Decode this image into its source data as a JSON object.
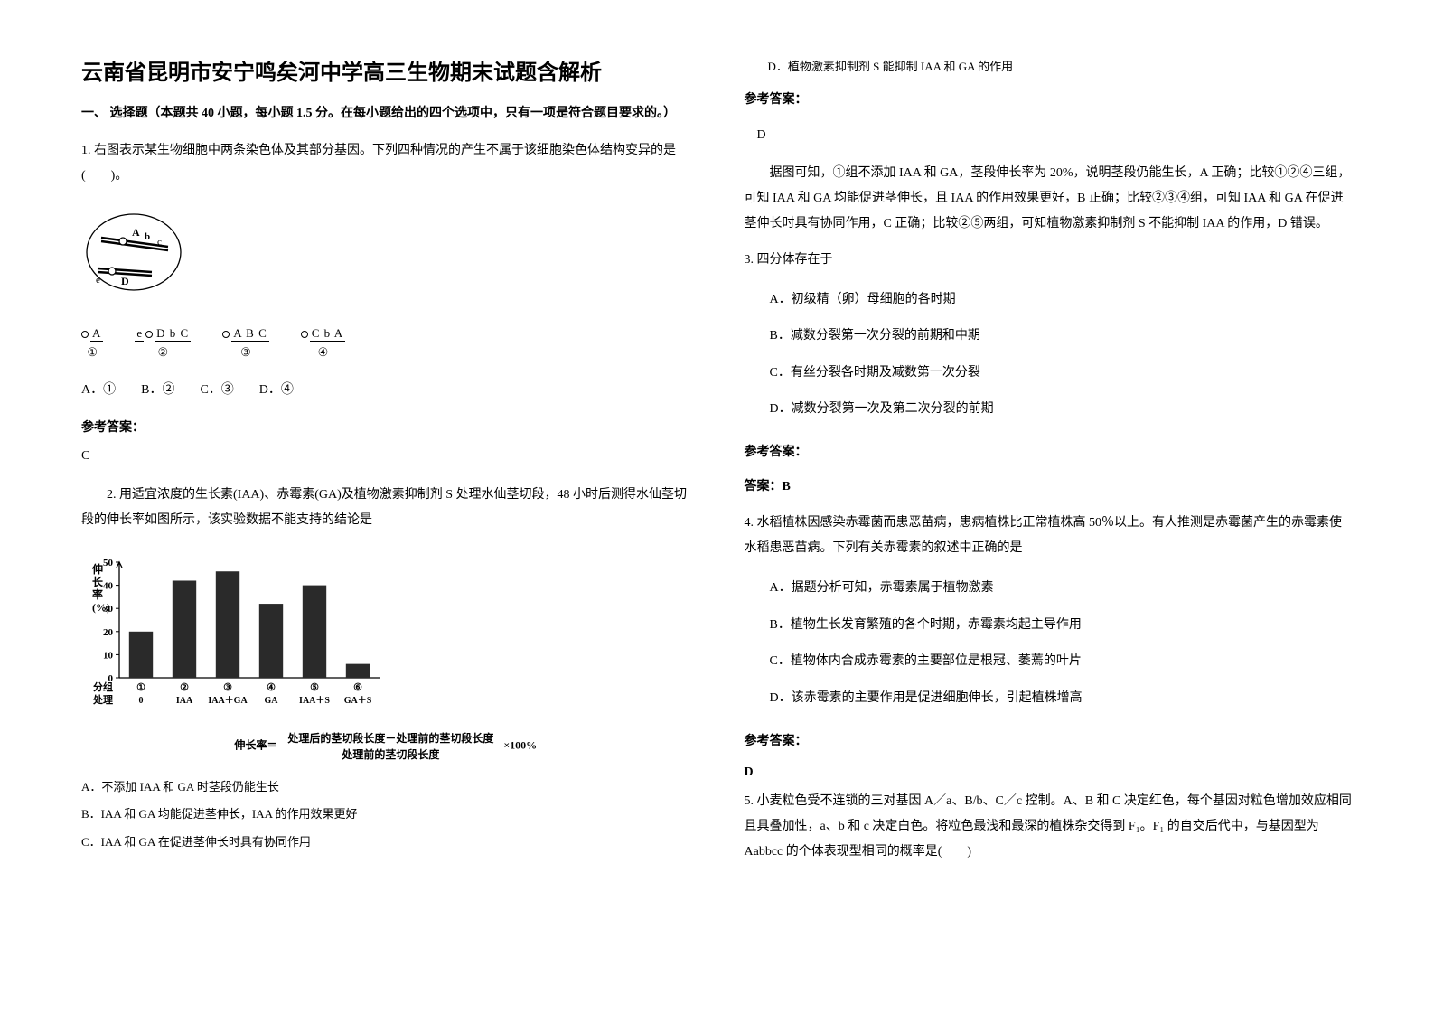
{
  "title": "云南省昆明市安宁鸣矣河中学高三生物期末试题含解析",
  "section1_header": "一、 选择题（本题共 40 小题，每小题 1.5 分。在每小题给出的四个选项中，只有一项是符合题目要求的。）",
  "q1": {
    "text": "1. 右图表示某生物细胞中两条染色体及其部分基因。下列四种情况的产生不属于该细胞染色体结构变异的是　(　　)。",
    "diagram_labels": {
      "A": "A",
      "b": "b",
      "c": "c",
      "e": "e",
      "D": "D"
    },
    "chromo_options": [
      {
        "letters": "A",
        "num": "①"
      },
      {
        "letters": "e  D b C",
        "num": "②"
      },
      {
        "letters": "A B C",
        "num": "③"
      },
      {
        "letters": "C b A",
        "num": "④"
      }
    ],
    "options": "A．①　　B．②　　C．③　　D．④",
    "answer_label": "参考答案：",
    "answer": "C"
  },
  "q2": {
    "text": "2. 用适宜浓度的生长素(IAA)、赤霉素(GA)及植物激素抑制剂 S 处理水仙茎切段，48 小时后测得水仙茎切段的伸长率如图所示，该实验数据不能支持的结论是",
    "chart": {
      "type": "bar",
      "ylabel_lines": [
        "伸",
        "长",
        "率",
        "(%)"
      ],
      "ymax": 50,
      "ytick_step": 10,
      "ylim": [
        0,
        50
      ],
      "categories": [
        "①",
        "②",
        "③",
        "④",
        "⑤",
        "⑥"
      ],
      "treatments": [
        "0",
        "IAA",
        "IAA＋GA",
        "GA",
        "IAA＋S",
        "GA＋S"
      ],
      "row_labels": [
        "分组",
        "处理"
      ],
      "values": [
        20,
        42,
        46,
        32,
        40,
        6
      ],
      "bar_color": "#2a2a2a",
      "bar_width": 0.55,
      "axis_color": "#000000",
      "background_color": "#ffffff",
      "font_size": 11
    },
    "formula_prefix": "伸长率＝",
    "formula_numer": "处理后的茎切段长度－处理前的茎切段长度",
    "formula_denom": "处理前的茎切段长度",
    "formula_suffix": "×100%",
    "opts": [
      "A．不添加 IAA 和 GA 时茎段仍能生长",
      "B．IAA 和 GA 均能促进茎伸长，IAA 的作用效果更好",
      "C．IAA 和 GA 在促进茎伸长时具有协同作用"
    ]
  },
  "col2_top_line": "D．植物激素抑制剂 S 能抑制 IAA 和 GA 的作用",
  "q2_answer_label": "参考答案：",
  "q2_answer": "D",
  "q2_explain": "　　据图可知，①组不添加 IAA 和 GA，茎段伸长率为 20%，说明茎段仍能生长，A 正确；比较①②④三组，可知 IAA 和 GA 均能促进茎伸长，且 IAA 的作用效果更好，B 正确；比较②③④组，可知 IAA 和 GA 在促进茎伸长时具有协同作用，C 正确；比较②⑤两组，可知植物激素抑制剂 S 不能抑制 IAA 的作用，D 错误。",
  "q3": {
    "text": "3. 四分体存在于",
    "opts": [
      "A．初级精（卵）母细胞的各时期",
      "B．减数分裂第一次分裂的前期和中期",
      "C．有丝分裂各时期及减数第一次分裂",
      "D．减数分裂第一次及第二次分裂的前期"
    ],
    "answer_label": "参考答案：",
    "answer": "答案：B"
  },
  "q4": {
    "text": "4. 水稻植株因感染赤霉菌而患恶苗病，患病植株比正常植株高 50％以上。有人推测是赤霉菌产生的赤霉素使水稻患恶苗病。下列有关赤霉素的叙述中正确的是",
    "opts": [
      "A．据题分析可知，赤霉素属于植物激素",
      "B．植物生长发育繁殖的各个时期，赤霉素均起主导作用",
      "C．植物体内合成赤霉素的主要部位是根冠、萎蔫的叶片",
      "D．该赤霉素的主要作用是促进细胞伸长，引起植株增高"
    ],
    "answer_label": "参考答案：",
    "answer": "D"
  },
  "q5": {
    "text": "5. 小麦粒色受不连锁的三对基因 A／a、B/b、C／c 控制。A、B 和 C 决定红色，每个基因对粒色增加效应相同且具叠加性，a、b 和 c 决定白色。将粒色最浅和最深的植株杂交得到 F₁。F₁ 的自交后代中，与基因型为 Aabbcc 的个体表现型相同的概率是(　　)"
  }
}
